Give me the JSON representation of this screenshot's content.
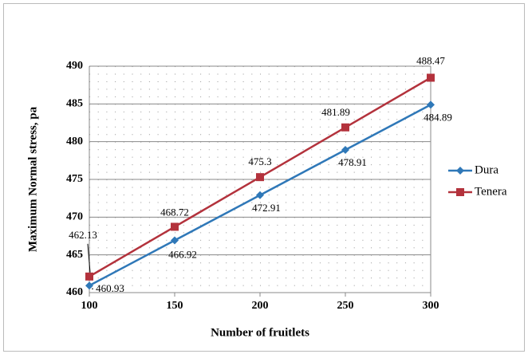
{
  "chart_data": {
    "type": "line",
    "x_label": "Number of fruitlets",
    "y_label": "Maximum Normal stress, pa",
    "x": [
      100,
      150,
      200,
      250,
      300
    ],
    "series": [
      {
        "name": "Dura",
        "color": "#2f78b8",
        "marker": "diamond",
        "values": [
          460.93,
          466.92,
          472.91,
          478.91,
          484.89
        ]
      },
      {
        "name": "Tenera",
        "color": "#b3323c",
        "marker": "square",
        "values": [
          462.13,
          468.72,
          475.3,
          481.89,
          488.47
        ]
      }
    ],
    "xlim": [
      100,
      300
    ],
    "xticks": [
      100,
      150,
      200,
      250,
      300
    ],
    "ylim": [
      460,
      490
    ],
    "yticks": [
      460,
      465,
      470,
      475,
      480,
      485,
      490
    ],
    "grid": true,
    "legend": "right"
  }
}
